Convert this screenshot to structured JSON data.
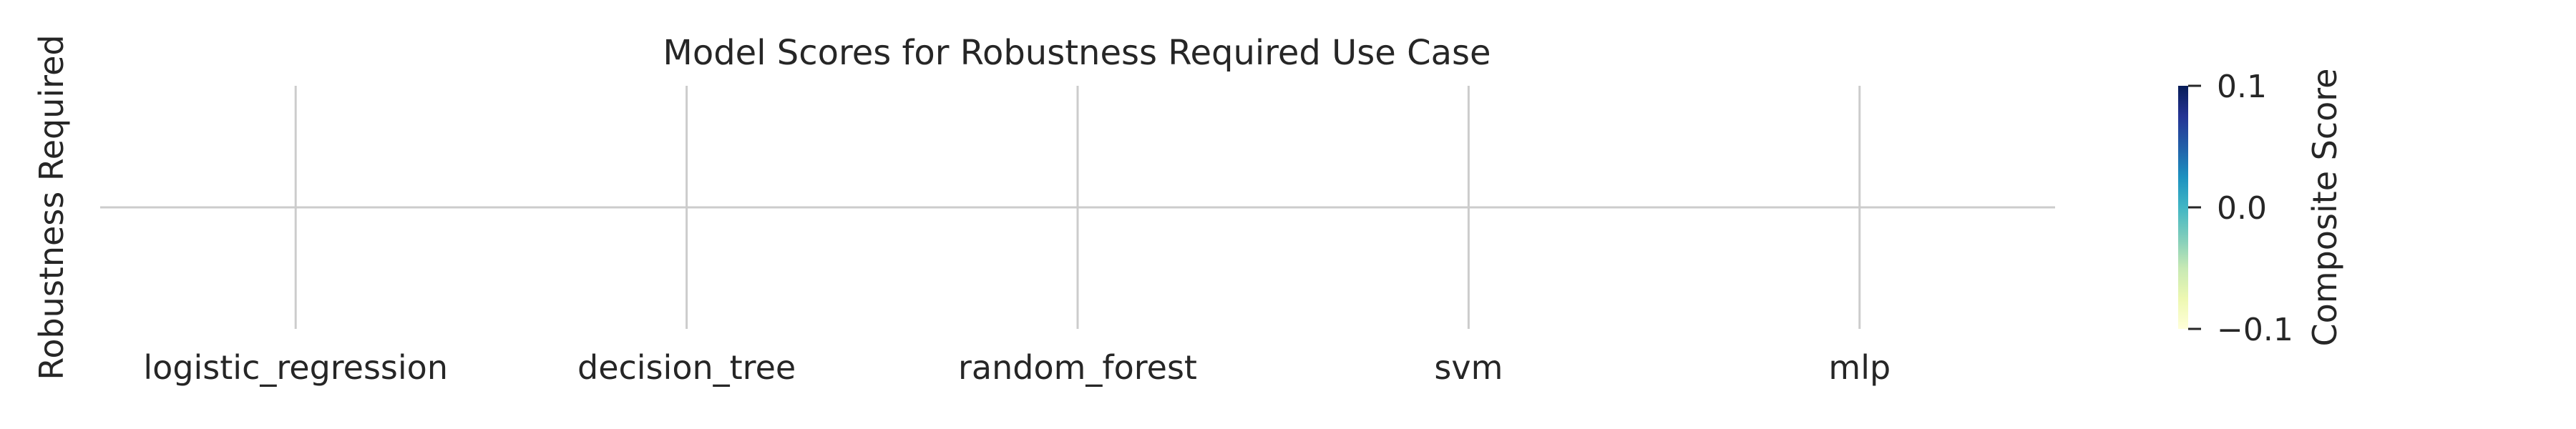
{
  "chart_data": {
    "type": "heatmap",
    "title": "Model Scores for Robustness Required Use Case",
    "xlabel": "",
    "ylabel": "",
    "categories": [
      "logistic_regression",
      "decision_tree",
      "random_forest",
      "svm",
      "mlp"
    ],
    "rows": [
      "Robustness Required"
    ],
    "values": [
      [
        null,
        null,
        null,
        null,
        null
      ]
    ],
    "grid": true,
    "colorbar": {
      "label": "Composite Score",
      "colormap": "YlGnBu",
      "range": [
        -0.1,
        0.1
      ],
      "ticks": [
        0.1,
        0.0,
        -0.1
      ],
      "tick_labels": [
        "0.1",
        "0.0",
        "−0.1"
      ],
      "position": "right",
      "gradient": [
        "#081d58",
        "#253494",
        "#225ea8",
        "#1d91c0",
        "#41b6c4",
        "#7fcdbb",
        "#c7e9b4",
        "#edf8b1",
        "#ffffd9"
      ]
    },
    "colors": {
      "grid": "#cccccc",
      "text": "#262626"
    }
  }
}
